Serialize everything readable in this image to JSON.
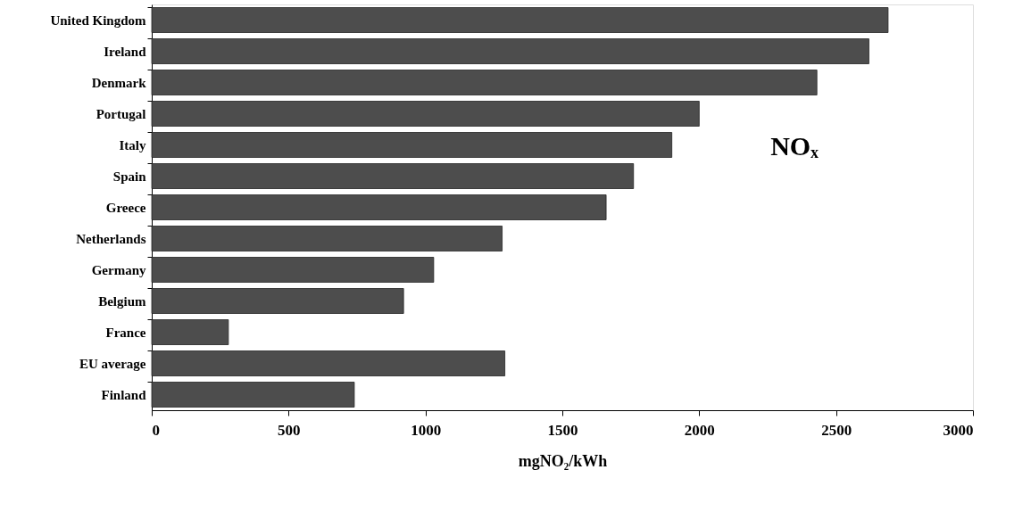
{
  "chart_data": {
    "type": "bar",
    "orientation": "horizontal",
    "categories": [
      "United Kingdom",
      "Ireland",
      "Denmark",
      "Portugal",
      "Italy",
      "Spain",
      "Greece",
      "Netherlands",
      "Germany",
      "Belgium",
      "France",
      "EU average",
      "Finland"
    ],
    "values": [
      2690,
      2620,
      2430,
      2000,
      1900,
      1760,
      1660,
      1280,
      1030,
      920,
      280,
      1290,
      740
    ],
    "color": "#4d4d4d",
    "xlim": [
      0,
      3000
    ],
    "xticks": [
      0,
      500,
      1000,
      1500,
      2000,
      2500,
      3000
    ],
    "xlabel": "mgNO₂/kWh",
    "annotations": [
      "NOₓ"
    ],
    "grid": false
  }
}
